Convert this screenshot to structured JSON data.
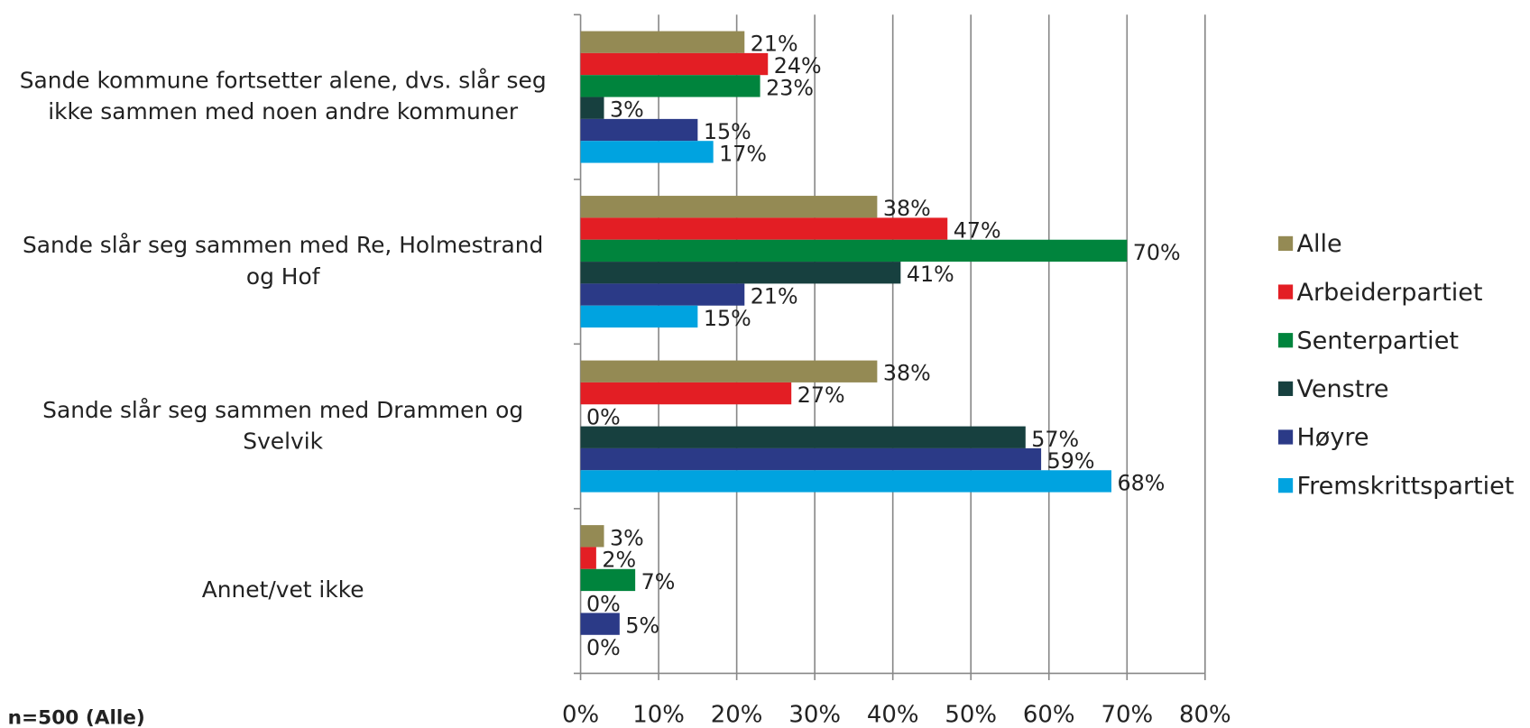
{
  "chart_data": {
    "type": "hbar",
    "categories": [
      "Sande kommune fortsetter alene, dvs. slår seg ikke sammen med noen andre kommuner",
      "Sande slår seg sammen med Re, Holmestrand og Hof",
      "Sande slår seg sammen med Drammen og Svelvik",
      "Annet/vet ikke"
    ],
    "series": [
      {
        "name": "Alle",
        "color": "#948a54",
        "values": [
          21,
          38,
          38,
          3
        ],
        "value_labels": [
          "21%",
          "38%",
          "38%",
          "3%"
        ]
      },
      {
        "name": "Arbeiderpartiet",
        "color": "#e31e24",
        "values": [
          24,
          47,
          27,
          2
        ],
        "value_labels": [
          "24%",
          "47%",
          "27%",
          "2%"
        ]
      },
      {
        "name": "Senterpartiet",
        "color": "#00843d",
        "values": [
          23,
          70,
          0,
          7
        ],
        "value_labels": [
          "23%",
          "70%",
          "0%",
          "7%"
        ]
      },
      {
        "name": "Venstre",
        "color": "#17403f",
        "values": [
          3,
          41,
          57,
          0
        ],
        "value_labels": [
          "3%",
          "41%",
          "57%",
          "0%"
        ]
      },
      {
        "name": "Høyre",
        "color": "#2b3a87",
        "values": [
          15,
          21,
          59,
          5
        ],
        "value_labels": [
          "15%",
          "21%",
          "59%",
          "5%"
        ]
      },
      {
        "name": "Fremskrittspartiet",
        "color": "#00a3e0",
        "values": [
          17,
          15,
          68,
          0
        ],
        "value_labels": [
          "17%",
          "15%",
          "68%",
          "0%"
        ]
      }
    ],
    "xlim": [
      0,
      80
    ],
    "xticks": [
      {
        "value": 0,
        "label": "0%"
      },
      {
        "value": 10,
        "label": "10%"
      },
      {
        "value": 20,
        "label": "20%"
      },
      {
        "value": 30,
        "label": "30%"
      },
      {
        "value": 40,
        "label": "40%"
      },
      {
        "value": 50,
        "label": "50%"
      },
      {
        "value": 60,
        "label": "60%"
      },
      {
        "value": 70,
        "label": "70%"
      },
      {
        "value": 80,
        "label": "80%"
      }
    ],
    "grid": true,
    "legend": "right",
    "note": "n=500 (Alle)"
  }
}
